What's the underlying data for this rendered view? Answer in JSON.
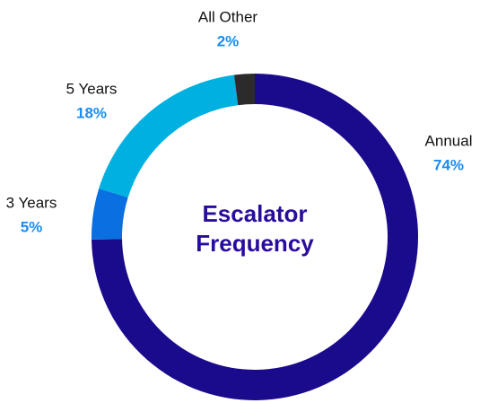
{
  "chart_data": {
    "type": "donut",
    "title": "Escalator Frequency",
    "categories": [
      "Annual",
      "3 Years",
      "5 Years",
      "All Other"
    ],
    "values": [
      74,
      5,
      18,
      2
    ],
    "value_labels": [
      "74%",
      "5%",
      "18%",
      "2%"
    ],
    "colors": [
      "#1a0a8c",
      "#0a6fe0",
      "#00b0e0",
      "#2b2b2b"
    ]
  }
}
